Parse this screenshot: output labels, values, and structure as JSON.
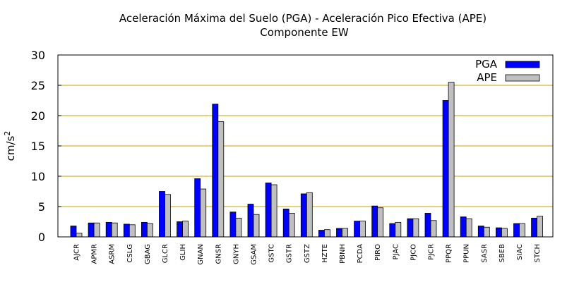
{
  "chart_data": {
    "type": "bar",
    "title": "Aceleración Máxima del Suelo (PGA) -  Aceleración Pico Efectiva (APE)",
    "subtitle": "Componente EW",
    "xlabel": "",
    "ylabel": "cm/s",
    "ylabel_superscript": "2",
    "ylim": [
      0,
      30
    ],
    "yticks": [
      0,
      5,
      10,
      15,
      20,
      25,
      30
    ],
    "grid": true,
    "legend_position": "top-right",
    "categories": [
      "AJCR",
      "APMR",
      "ASRM",
      "CSLG",
      "GBAG",
      "GLCR",
      "GLIH",
      "GNAN",
      "GNSR",
      "GNYH",
      "GSAM",
      "GSTC",
      "GSTR",
      "GSTZ",
      "HZTE",
      "PBNH",
      "PCDA",
      "PIRO",
      "PJAC",
      "PJCO",
      "PJCR",
      "PPQR",
      "PPUN",
      "SASR",
      "SBEB",
      "SIAC",
      "STCH"
    ],
    "series": [
      {
        "name": "PGA",
        "color": "#0000ff",
        "values": [
          1.8,
          2.3,
          2.4,
          2.1,
          2.4,
          7.5,
          2.5,
          9.6,
          21.9,
          4.1,
          5.4,
          8.9,
          4.6,
          7.1,
          1.1,
          1.4,
          2.6,
          5.1,
          2.2,
          3.0,
          3.9,
          22.5,
          3.3,
          1.8,
          1.5,
          2.2,
          3.1
        ]
      },
      {
        "name": "APE",
        "color": "#c0c0c0",
        "values": [
          0.6,
          2.3,
          2.3,
          2.0,
          2.2,
          7.0,
          2.6,
          7.9,
          19.0,
          3.1,
          3.7,
          8.6,
          3.9,
          7.3,
          1.2,
          1.4,
          2.6,
          4.8,
          2.4,
          3.0,
          2.7,
          25.5,
          3.0,
          1.6,
          1.4,
          2.2,
          3.4
        ]
      }
    ]
  }
}
